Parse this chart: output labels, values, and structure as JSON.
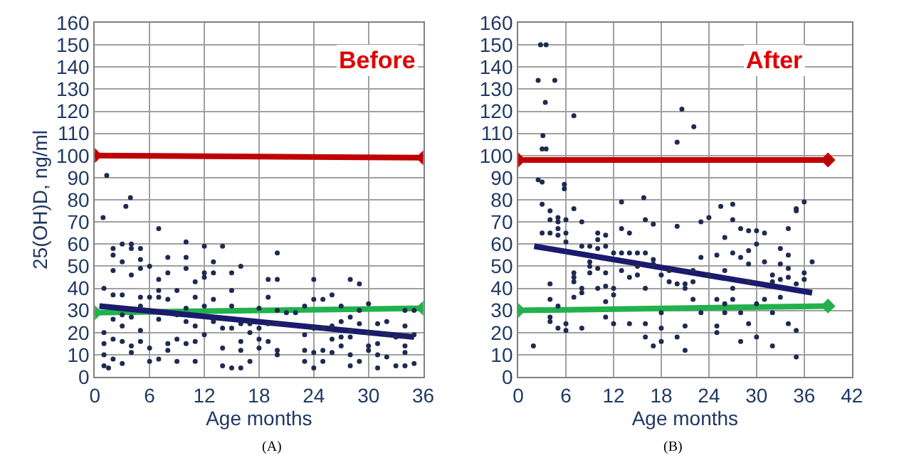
{
  "chart_data": [
    {
      "type": "scatter",
      "xlabel": "Age months",
      "ylabel": "25(OH)D, ng/ml",
      "annotations": [
        "Before",
        "(A)"
      ],
      "xlim": [
        0,
        36
      ],
      "xticks": [
        0,
        6,
        12,
        18,
        24,
        30,
        36
      ],
      "ylim": [
        0,
        160
      ],
      "yticks": [
        0,
        10,
        20,
        30,
        40,
        50,
        60,
        70,
        80,
        90,
        100,
        110,
        120,
        130,
        140,
        150,
        160
      ],
      "grid": true,
      "marker": "circle",
      "series": [
        {
          "color": "#1f2a50",
          "x": [
            0.9,
            1.3,
            3.4,
            3.9,
            1,
            1,
            1,
            1,
            1,
            1.5,
            2,
            2,
            2,
            2,
            2,
            2,
            2,
            3,
            3,
            3,
            3,
            3,
            3,
            3,
            4,
            4,
            4,
            4,
            4,
            4,
            5,
            5,
            5,
            5,
            5,
            5,
            5,
            6,
            6,
            6,
            6,
            7,
            7,
            7,
            7,
            7,
            7,
            8,
            8,
            8,
            8,
            8,
            9,
            9,
            9,
            9,
            10,
            10,
            10,
            10,
            10,
            10,
            11,
            11,
            11,
            11,
            11,
            12,
            12,
            12,
            12,
            12,
            13,
            13,
            13,
            13,
            14,
            14,
            14,
            14,
            15,
            15,
            15,
            15,
            15,
            16,
            16,
            16,
            16,
            16,
            17,
            17,
            17,
            18,
            18,
            18,
            18,
            19,
            19,
            19,
            19,
            20,
            20,
            20,
            20,
            20,
            20,
            21,
            22,
            23,
            23,
            23,
            23,
            24,
            24,
            24,
            24,
            24,
            25,
            25,
            25,
            25,
            26,
            26,
            26,
            26,
            27,
            27,
            27,
            27,
            28,
            28,
            28,
            28,
            28,
            28,
            29,
            29,
            29,
            29,
            30,
            30,
            30,
            30,
            31,
            31,
            31,
            31,
            32,
            32,
            32,
            33,
            33,
            34,
            34,
            34,
            34,
            34,
            35,
            35,
            35
          ],
          "values": [
            72,
            91,
            77,
            81,
            40,
            20,
            15,
            10,
            5,
            4,
            26,
            17,
            8,
            55,
            58,
            48,
            37,
            60,
            52,
            37,
            28,
            23,
            16,
            6,
            60,
            58,
            46,
            27,
            14,
            11,
            58,
            53,
            49,
            36,
            32,
            21,
            16,
            50,
            36,
            13,
            7,
            67,
            44,
            39,
            36,
            26,
            8,
            54,
            47,
            35,
            15,
            12,
            39,
            28,
            17,
            7,
            61,
            54,
            49,
            31,
            25,
            15,
            43,
            36,
            23,
            16,
            7,
            59,
            47,
            45,
            32,
            19,
            52,
            47,
            35,
            25,
            59,
            22,
            13,
            5,
            47,
            39,
            32,
            22,
            4,
            50,
            24,
            16,
            12,
            4,
            24,
            20,
            7,
            31,
            22,
            17,
            13,
            44,
            36,
            24,
            16,
            56,
            44,
            30,
            24,
            12,
            10,
            29,
            29,
            32,
            19,
            12,
            7,
            44,
            35,
            22,
            11,
            4,
            35,
            22,
            12,
            7,
            37,
            23,
            17,
            11,
            32,
            25,
            18,
            14,
            44,
            27,
            21,
            18,
            10,
            5,
            42,
            30,
            24,
            7,
            33,
            20,
            14,
            12,
            24,
            15,
            10,
            4,
            25,
            19,
            9,
            18,
            5,
            30,
            23,
            14,
            11,
            5,
            30,
            19,
            6
          ]
        },
        {
          "type": "line",
          "color": "#c00000",
          "marker": "diamond",
          "x": [
            0,
            36
          ],
          "values": [
            100,
            99
          ]
        },
        {
          "type": "line",
          "color": "#22b14c",
          "marker": "diamond",
          "x": [
            0,
            36
          ],
          "values": [
            29,
            31
          ]
        },
        {
          "type": "line",
          "color": "#1a1a6e",
          "marker": "none",
          "x": [
            0.5,
            35
          ],
          "values": [
            32,
            18
          ]
        }
      ]
    },
    {
      "type": "scatter",
      "xlabel": "Age months",
      "annotations": [
        "After",
        "(B)"
      ],
      "xlim": [
        0,
        42
      ],
      "xticks": [
        0,
        6,
        12,
        18,
        24,
        30,
        36,
        42
      ],
      "ylim": [
        0,
        160
      ],
      "yticks": [
        0,
        10,
        20,
        30,
        40,
        50,
        60,
        70,
        80,
        90,
        100,
        110,
        120,
        130,
        140,
        150,
        160
      ],
      "grid": true,
      "marker": "circle",
      "series": [
        {
          "color": "#1f2a50",
          "x": [
            2.8,
            3.5,
            2.5,
            4.6,
            3.4,
            7,
            3.1,
            3,
            3.5,
            2.5,
            3,
            5.8,
            5.8,
            20,
            20.6,
            22.1,
            15.8,
            13,
            25.5,
            27,
            36,
            1.9,
            3,
            3,
            4,
            4,
            4,
            4,
            4,
            4,
            4,
            5,
            5,
            5,
            5,
            5,
            5,
            6,
            6,
            6,
            6,
            6,
            7,
            7,
            7,
            7,
            7,
            8,
            8,
            8,
            8,
            8,
            9,
            9,
            9,
            9,
            10,
            10,
            10,
            10,
            10,
            11,
            11,
            11,
            11,
            11,
            11,
            12,
            12,
            12,
            12,
            13,
            13,
            13,
            14,
            14,
            14,
            14,
            15,
            15,
            15,
            16,
            16,
            16,
            16,
            16,
            17,
            17,
            17,
            17,
            18,
            18,
            18,
            18,
            19,
            19,
            20,
            20,
            20,
            21,
            21,
            21,
            21,
            22,
            22,
            22,
            23,
            23,
            23,
            24,
            24,
            25,
            25,
            25,
            25,
            26,
            26,
            26,
            26,
            27,
            27,
            27,
            27,
            28,
            28,
            28,
            28,
            29,
            29,
            29,
            29,
            29,
            30,
            30,
            30,
            30,
            31,
            31,
            31,
            32,
            32,
            32,
            32,
            33,
            33,
            33,
            33,
            34,
            34,
            34,
            34,
            34,
            35,
            35,
            35,
            35,
            35,
            36,
            36,
            37
          ],
          "values": [
            150,
            150,
            134,
            134,
            124,
            118,
            109,
            103,
            103,
            89,
            88,
            87,
            85,
            106,
            121,
            113,
            81,
            79,
            77,
            78,
            79,
            14,
            78,
            65,
            75,
            71,
            65,
            42,
            35,
            27,
            25,
            72,
            70,
            67,
            64,
            32,
            22,
            71,
            65,
            61,
            24,
            21,
            76,
            47,
            45,
            43,
            36,
            70,
            59,
            40,
            38,
            22,
            59,
            52,
            50,
            47,
            65,
            62,
            58,
            49,
            40,
            64,
            59,
            47,
            41,
            34,
            27,
            56,
            40,
            37,
            24,
            67,
            56,
            48,
            65,
            56,
            45,
            24,
            56,
            50,
            46,
            71,
            56,
            40,
            24,
            18,
            69,
            53,
            51,
            14,
            46,
            29,
            22,
            16,
            48,
            43,
            68,
            42,
            18,
            42,
            40,
            23,
            12,
            48,
            35,
            43,
            70,
            54,
            29,
            72,
            46,
            55,
            35,
            23,
            20,
            63,
            48,
            33,
            29,
            71,
            56,
            40,
            35,
            67,
            54,
            29,
            16,
            66,
            57,
            51,
            43,
            24,
            66,
            60,
            33,
            18,
            65,
            52,
            35,
            46,
            43,
            29,
            14,
            58,
            51,
            44,
            36,
            67,
            55,
            49,
            45,
            24,
            76,
            75,
            42,
            21,
            9,
            47,
            44,
            52
          ]
        },
        {
          "type": "line",
          "color": "#c00000",
          "marker": "diamond",
          "x": [
            0,
            39
          ],
          "values": [
            98,
            98
          ]
        },
        {
          "type": "line",
          "color": "#22b14c",
          "marker": "diamond",
          "x": [
            0,
            39
          ],
          "values": [
            30,
            32
          ]
        },
        {
          "type": "line",
          "color": "#1a1a6e",
          "marker": "none",
          "x": [
            2,
            37
          ],
          "values": [
            59,
            38
          ]
        }
      ]
    }
  ]
}
